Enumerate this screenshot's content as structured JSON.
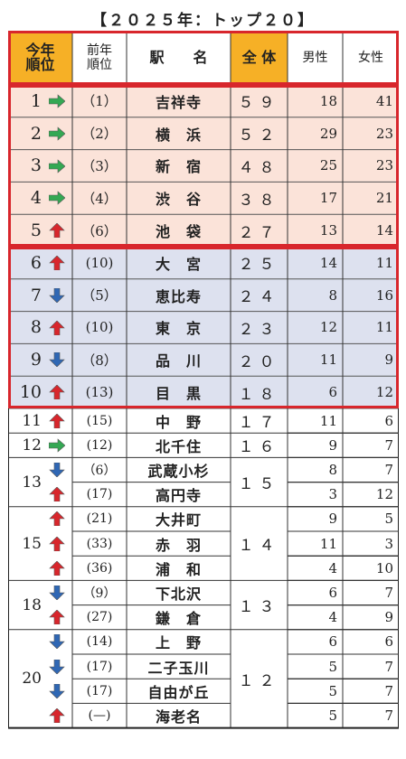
{
  "title": "【２０２５年：トップ２０】",
  "headers": {
    "rank": [
      "今年",
      "順位"
    ],
    "prev": [
      "前年",
      "順位"
    ],
    "station": "駅　　名",
    "total": "全 体",
    "male": "男性",
    "female": "女性"
  },
  "colors": {
    "header_highlight": "#f6b026",
    "band_top5": "#fbe3d9",
    "band_6_10": "#dde1ef",
    "border_red": "#d8262c",
    "arrow_up": "#d8262c",
    "arrow_down": "#2f67b4",
    "arrow_same": "#34a853"
  },
  "rows": [
    {
      "rank": "1",
      "trend": "same",
      "prev": "（1）",
      "station": "吉祥寺",
      "total": "５９",
      "male": "18",
      "female": "41"
    },
    {
      "rank": "2",
      "trend": "same",
      "prev": "（2）",
      "station": "横　浜",
      "total": "５２",
      "male": "29",
      "female": "23"
    },
    {
      "rank": "3",
      "trend": "same",
      "prev": "（3）",
      "station": "新　宿",
      "total": "４８",
      "male": "25",
      "female": "23"
    },
    {
      "rank": "4",
      "trend": "same",
      "prev": "（4）",
      "station": "渋　谷",
      "total": "３８",
      "male": "17",
      "female": "21"
    },
    {
      "rank": "5",
      "trend": "up",
      "prev": "（6）",
      "station": "池　袋",
      "total": "２７",
      "male": "13",
      "female": "14"
    },
    {
      "rank": "6",
      "trend": "up",
      "prev": "(10)",
      "station": "大　宮",
      "total": "２５",
      "male": "14",
      "female": "11"
    },
    {
      "rank": "7",
      "trend": "down",
      "prev": "（5）",
      "station": "恵比寿",
      "total": "２４",
      "male": "8",
      "female": "16"
    },
    {
      "rank": "8",
      "trend": "up",
      "prev": "(10)",
      "station": "東　京",
      "total": "２３",
      "male": "12",
      "female": "11"
    },
    {
      "rank": "9",
      "trend": "down",
      "prev": "（8）",
      "station": "品　川",
      "total": "２０",
      "male": "11",
      "female": "9"
    },
    {
      "rank": "10",
      "trend": "up",
      "prev": "(13)",
      "station": "目　黒",
      "total": "１８",
      "male": "6",
      "female": "12"
    },
    {
      "rank": "11",
      "trend": "up",
      "prev": "(15)",
      "station": "中　野",
      "total": "１７",
      "male": "11",
      "female": "6"
    },
    {
      "rank": "12",
      "trend": "same",
      "prev": "(12)",
      "station": "北千住",
      "total": "１６",
      "male": "9",
      "female": "7"
    },
    {
      "rank": "13",
      "trend": "down",
      "prev": "（6）",
      "station": "武蔵小杉",
      "total": "１５",
      "male": "8",
      "female": "7"
    },
    {
      "rank": "",
      "trend": "up",
      "prev": "(17)",
      "station": "高円寺",
      "total": "",
      "male": "3",
      "female": "12"
    },
    {
      "rank": "",
      "trend": "up",
      "prev": "(21)",
      "station": "大井町",
      "total": "",
      "male": "9",
      "female": "5"
    },
    {
      "rank": "15",
      "trend": "up",
      "prev": "(33)",
      "station": "赤　羽",
      "total": "１４",
      "male": "11",
      "female": "3"
    },
    {
      "rank": "",
      "trend": "up",
      "prev": "(36)",
      "station": "浦　和",
      "total": "",
      "male": "4",
      "female": "10"
    },
    {
      "rank": "18",
      "trend": "down",
      "prev": "（9）",
      "station": "下北沢",
      "total": "１３",
      "male": "6",
      "female": "7"
    },
    {
      "rank": "",
      "trend": "up",
      "prev": "(27)",
      "station": "鎌　倉",
      "total": "",
      "male": "4",
      "female": "9"
    },
    {
      "rank": "",
      "trend": "down",
      "prev": "(14)",
      "station": "上　野",
      "total": "",
      "male": "6",
      "female": "6"
    },
    {
      "rank": "20",
      "trend": "down",
      "prev": "(17)",
      "station": "二子玉川",
      "total": "１２",
      "male": "5",
      "female": "7"
    },
    {
      "rank": "",
      "trend": "down",
      "prev": "(17)",
      "station": "自由が丘",
      "total": "",
      "male": "5",
      "female": "7"
    },
    {
      "rank": "",
      "trend": "up",
      "prev": "(—)",
      "station": "海老名",
      "total": "",
      "male": "5",
      "female": "7"
    }
  ]
}
